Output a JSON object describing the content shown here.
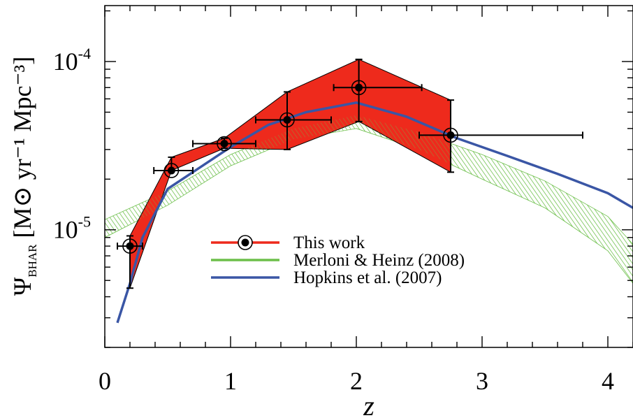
{
  "chart_data": {
    "type": "line",
    "xlabel": "z",
    "ylabel": {
      "main": "Ψ",
      "sub": "BHAR",
      "units": "[M⊙ yr⁻¹ Mpc⁻³]"
    },
    "xlim": [
      0,
      4.2
    ],
    "ylim": [
      2e-06,
      0.000215
    ],
    "yscale": "log",
    "x_ticks": [
      0,
      1,
      2,
      3,
      4
    ],
    "x_tick_labels": [
      "0",
      "1",
      "2",
      "3",
      "4"
    ],
    "y_ticks": [
      1e-05,
      0.0001
    ],
    "y_tick_labels": [
      {
        "base": "10",
        "exp": "-5"
      },
      {
        "base": "10",
        "exp": "-4"
      }
    ],
    "legend": {
      "position": "center",
      "entries": [
        {
          "label": "This work",
          "color": "#ee2a1c",
          "marker": "circled-dot"
        },
        {
          "label": "Merloni & Heinz (2008)",
          "color": "#6cbf4a"
        },
        {
          "label": "Hopkins et al. (2007)",
          "color": "#3a56a5"
        }
      ]
    },
    "series": [
      {
        "name": "This work",
        "kind": "points_with_errors_and_band",
        "color": "#ee2a1c",
        "points": [
          {
            "x": 0.2,
            "y": 8e-06,
            "xerr": [
              0.1,
              0.1
            ],
            "yerr": [
              3.5e-06,
              1.2e-06
            ]
          },
          {
            "x": 0.53,
            "y": 2.25e-05,
            "xerr": [
              0.14,
              0.17
            ],
            "yerr": [
              0.0,
              4.5e-06
            ]
          },
          {
            "x": 0.95,
            "y": 3.25e-05,
            "xerr": [
              0.25,
              0.25
            ],
            "yerr": [
              2e-06,
              2.5e-06
            ]
          },
          {
            "x": 1.45,
            "y": 4.5e-05,
            "xerr": [
              0.25,
              0.35
            ],
            "yerr": [
              1.5e-05,
              2.1e-05
            ]
          },
          {
            "x": 2.02,
            "y": 7e-05,
            "xerr": [
              0.2,
              0.5
            ],
            "yerr": [
              2.6e-05,
              3.3e-05
            ]
          },
          {
            "x": 2.75,
            "y": 3.65e-05,
            "xerr": [
              0.25,
              1.05
            ],
            "yerr": [
              1.45e-05,
              2.25e-05
            ]
          }
        ],
        "band_upper": [
          [
            0.2,
            9.2e-06
          ],
          [
            0.53,
            2.7e-05
          ],
          [
            0.95,
            3.5e-05
          ],
          [
            1.45,
            6.6e-05
          ],
          [
            2.02,
            0.000103
          ],
          [
            2.75,
            5.9e-05
          ]
        ],
        "band_lower": [
          [
            0.2,
            4.5e-06
          ],
          [
            0.53,
            2.25e-05
          ],
          [
            0.95,
            3.05e-05
          ],
          [
            1.45,
            3e-05
          ],
          [
            2.02,
            4.4e-05
          ],
          [
            2.75,
            2.2e-05
          ]
        ]
      },
      {
        "name": "Merloni & Heinz (2008)",
        "kind": "hatched_band",
        "color": "#6cbf4a",
        "upper": [
          [
            0.0,
            1.15e-05
          ],
          [
            0.5,
            1.7e-05
          ],
          [
            1.0,
            2.8e-05
          ],
          [
            1.5,
            4e-05
          ],
          [
            2.0,
            4.8e-05
          ],
          [
            2.5,
            3.8e-05
          ],
          [
            3.0,
            2.8e-05
          ],
          [
            3.5,
            1.95e-05
          ],
          [
            4.0,
            1.2e-05
          ],
          [
            4.2,
            8.2e-06
          ]
        ],
        "lower": [
          [
            0.0,
            9e-06
          ],
          [
            0.5,
            1.4e-05
          ],
          [
            1.0,
            2.4e-05
          ],
          [
            1.5,
            3.45e-05
          ],
          [
            2.0,
            4e-05
          ],
          [
            2.5,
            3e-05
          ],
          [
            3.0,
            2e-05
          ],
          [
            3.5,
            1.35e-05
          ],
          [
            4.0,
            7.5e-06
          ],
          [
            4.2,
            4.8e-06
          ]
        ]
      },
      {
        "name": "Hopkins et al. (2007)",
        "kind": "line",
        "color": "#3a56a5",
        "x": [
          0.1,
          0.2,
          0.3,
          0.5,
          0.7,
          1.0,
          1.3,
          1.6,
          2.0,
          2.4,
          2.8,
          3.2,
          3.6,
          4.0,
          4.2
        ],
        "y": [
          2.8e-06,
          4.8e-06,
          9e-06,
          1.75e-05,
          2.2e-05,
          3.1e-05,
          4.2e-05,
          5e-05,
          5.7e-05,
          4.7e-05,
          3.5e-05,
          2.75e-05,
          2.15e-05,
          1.65e-05,
          1.35e-05
        ]
      }
    ]
  }
}
